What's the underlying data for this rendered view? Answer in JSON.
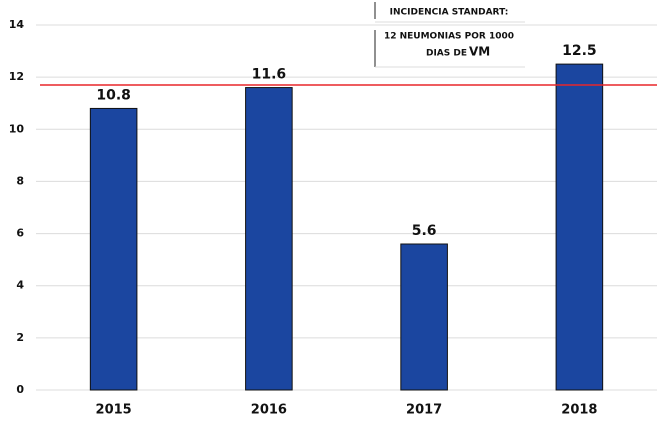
{
  "chart_data": {
    "type": "bar",
    "categories": [
      "2015",
      "2016",
      "2017",
      "2018"
    ],
    "values": [
      10.8,
      11.6,
      5.6,
      12.5
    ],
    "color": "#1b46a0",
    "ylim": [
      0,
      14
    ],
    "yticks": [
      0,
      2,
      4,
      6,
      8,
      10,
      12,
      14
    ],
    "grid": true,
    "reference_line": {
      "value": 11.7,
      "color": "#e8262a"
    },
    "annotation": [
      "INCIDENCIA STANDART:",
      "12 NEUMONIAS POR 1000",
      "DIAS DE",
      "VM"
    ]
  }
}
